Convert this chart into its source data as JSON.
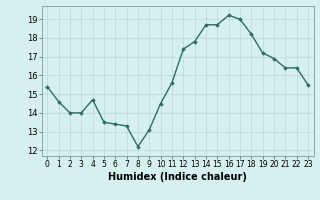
{
  "x": [
    0,
    1,
    2,
    3,
    4,
    5,
    6,
    7,
    8,
    9,
    10,
    11,
    12,
    13,
    14,
    15,
    16,
    17,
    18,
    19,
    20,
    21,
    22,
    23
  ],
  "y": [
    15.4,
    14.6,
    14.0,
    14.0,
    14.7,
    13.5,
    13.4,
    13.3,
    12.2,
    13.1,
    14.5,
    15.6,
    17.4,
    17.8,
    18.7,
    18.7,
    19.2,
    19.0,
    18.2,
    17.2,
    16.9,
    16.4,
    16.4,
    15.5
  ],
  "line_color": "#2d6e63",
  "marker": "D",
  "markersize": 1.8,
  "linewidth": 1.0,
  "bg_color": "#d6f0ef",
  "grid_color": "#b8d8d6",
  "xlabel": "Humidex (Indice chaleur)",
  "xlabel_fontsize": 7,
  "ylabel_ticks": [
    12,
    13,
    14,
    15,
    16,
    17,
    18,
    19
  ],
  "xtick_labels": [
    "0",
    "1",
    "2",
    "3",
    "4",
    "5",
    "6",
    "7",
    "8",
    "9",
    "10",
    "11",
    "12",
    "13",
    "14",
    "15",
    "16",
    "17",
    "18",
    "19",
    "20",
    "21",
    "22",
    "23"
  ],
  "ylim": [
    11.7,
    19.7
  ],
  "xlim": [
    -0.5,
    23.5
  ],
  "ytick_fontsize": 6,
  "xtick_fontsize": 5.5
}
